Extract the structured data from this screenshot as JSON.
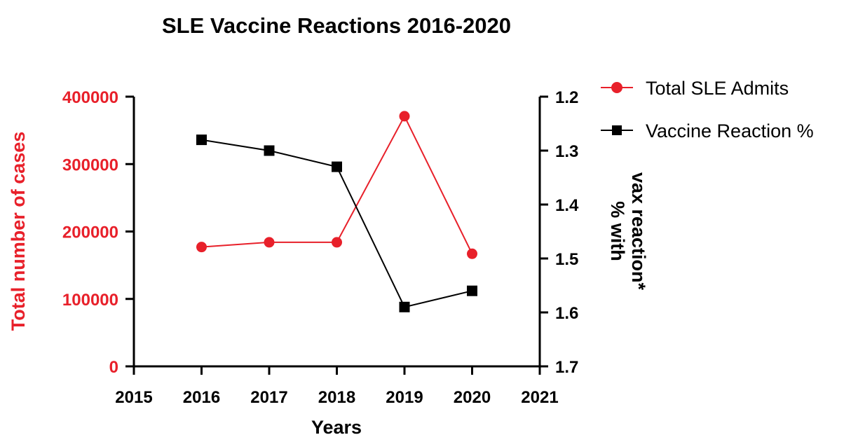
{
  "chart_data": {
    "type": "line",
    "title": "SLE Vaccine Reactions 2016-2020",
    "xlabel": "Years",
    "ylabel_left": "Total number of cases",
    "ylabel_right_line1": "% with",
    "ylabel_right_line2": "vax reaction*",
    "xlim": [
      2015,
      2021
    ],
    "x_ticks": [
      "2015",
      "2016",
      "2017",
      "2018",
      "2019",
      "2020",
      "2021"
    ],
    "ylim_left": [
      0,
      400000
    ],
    "y_ticks_left": [
      "0",
      "100000",
      "200000",
      "300000",
      "400000"
    ],
    "ylim_right": [
      1.2,
      1.7
    ],
    "right_axis_inverted": true,
    "y_ticks_right": [
      "1.2",
      "1.3",
      "1.4",
      "1.5",
      "1.6",
      "1.7"
    ],
    "legend_position": "top-right",
    "series": [
      {
        "name": "Total SLE Admits",
        "axis": "left",
        "color": "#e8202a",
        "marker": "circle",
        "x": [
          2016,
          2017,
          2018,
          2019,
          2020
        ],
        "values": [
          177000,
          184000,
          184000,
          371000,
          167000
        ]
      },
      {
        "name": "Vaccine Reaction %",
        "axis": "right",
        "color": "#000000",
        "marker": "square",
        "x": [
          2016,
          2017,
          2018,
          2019,
          2020
        ],
        "values": [
          1.28,
          1.3,
          1.33,
          1.59,
          1.56
        ]
      }
    ]
  }
}
